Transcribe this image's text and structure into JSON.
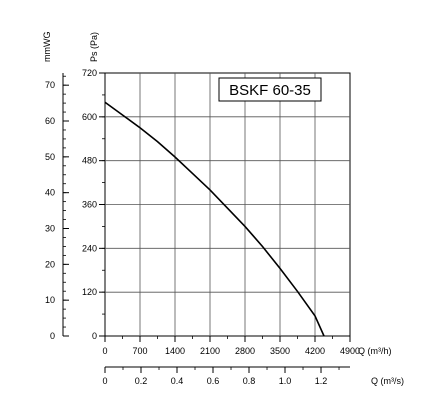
{
  "chart_data": {
    "type": "line",
    "title": "BSKF 60-35",
    "y_left_outer": {
      "label": "mmWG",
      "ticks": [
        "0",
        "10",
        "20",
        "30",
        "40",
        "50",
        "60",
        "70"
      ],
      "range": [
        0,
        73.4
      ]
    },
    "y_left_inner": {
      "label": "Ps (Pa)",
      "ticks": [
        "0",
        "120",
        "240",
        "360",
        "480",
        "600",
        "720"
      ],
      "range": [
        0,
        720
      ]
    },
    "x_primary": {
      "label": "Q (m³/h)",
      "ticks": [
        "0",
        "700",
        "1400",
        "2100",
        "2800",
        "3500",
        "4200",
        "4900"
      ],
      "range": [
        0,
        4900
      ]
    },
    "x_secondary": {
      "label": "Q (m³/s)",
      "ticks": [
        "0",
        "0.2",
        "0.4",
        "0.6",
        "0.8",
        "1.0",
        "1.2"
      ],
      "range": [
        0,
        1.361
      ]
    },
    "grid": true,
    "series": [
      {
        "x": [
          0,
          350,
          700,
          1050,
          1400,
          1750,
          2100,
          2450,
          2800,
          3150,
          3500,
          3850,
          4200,
          4380
        ],
        "values": [
          640,
          605,
          570,
          532,
          490,
          445,
          400,
          350,
          300,
          245,
          185,
          122,
          55,
          0
        ]
      }
    ]
  }
}
